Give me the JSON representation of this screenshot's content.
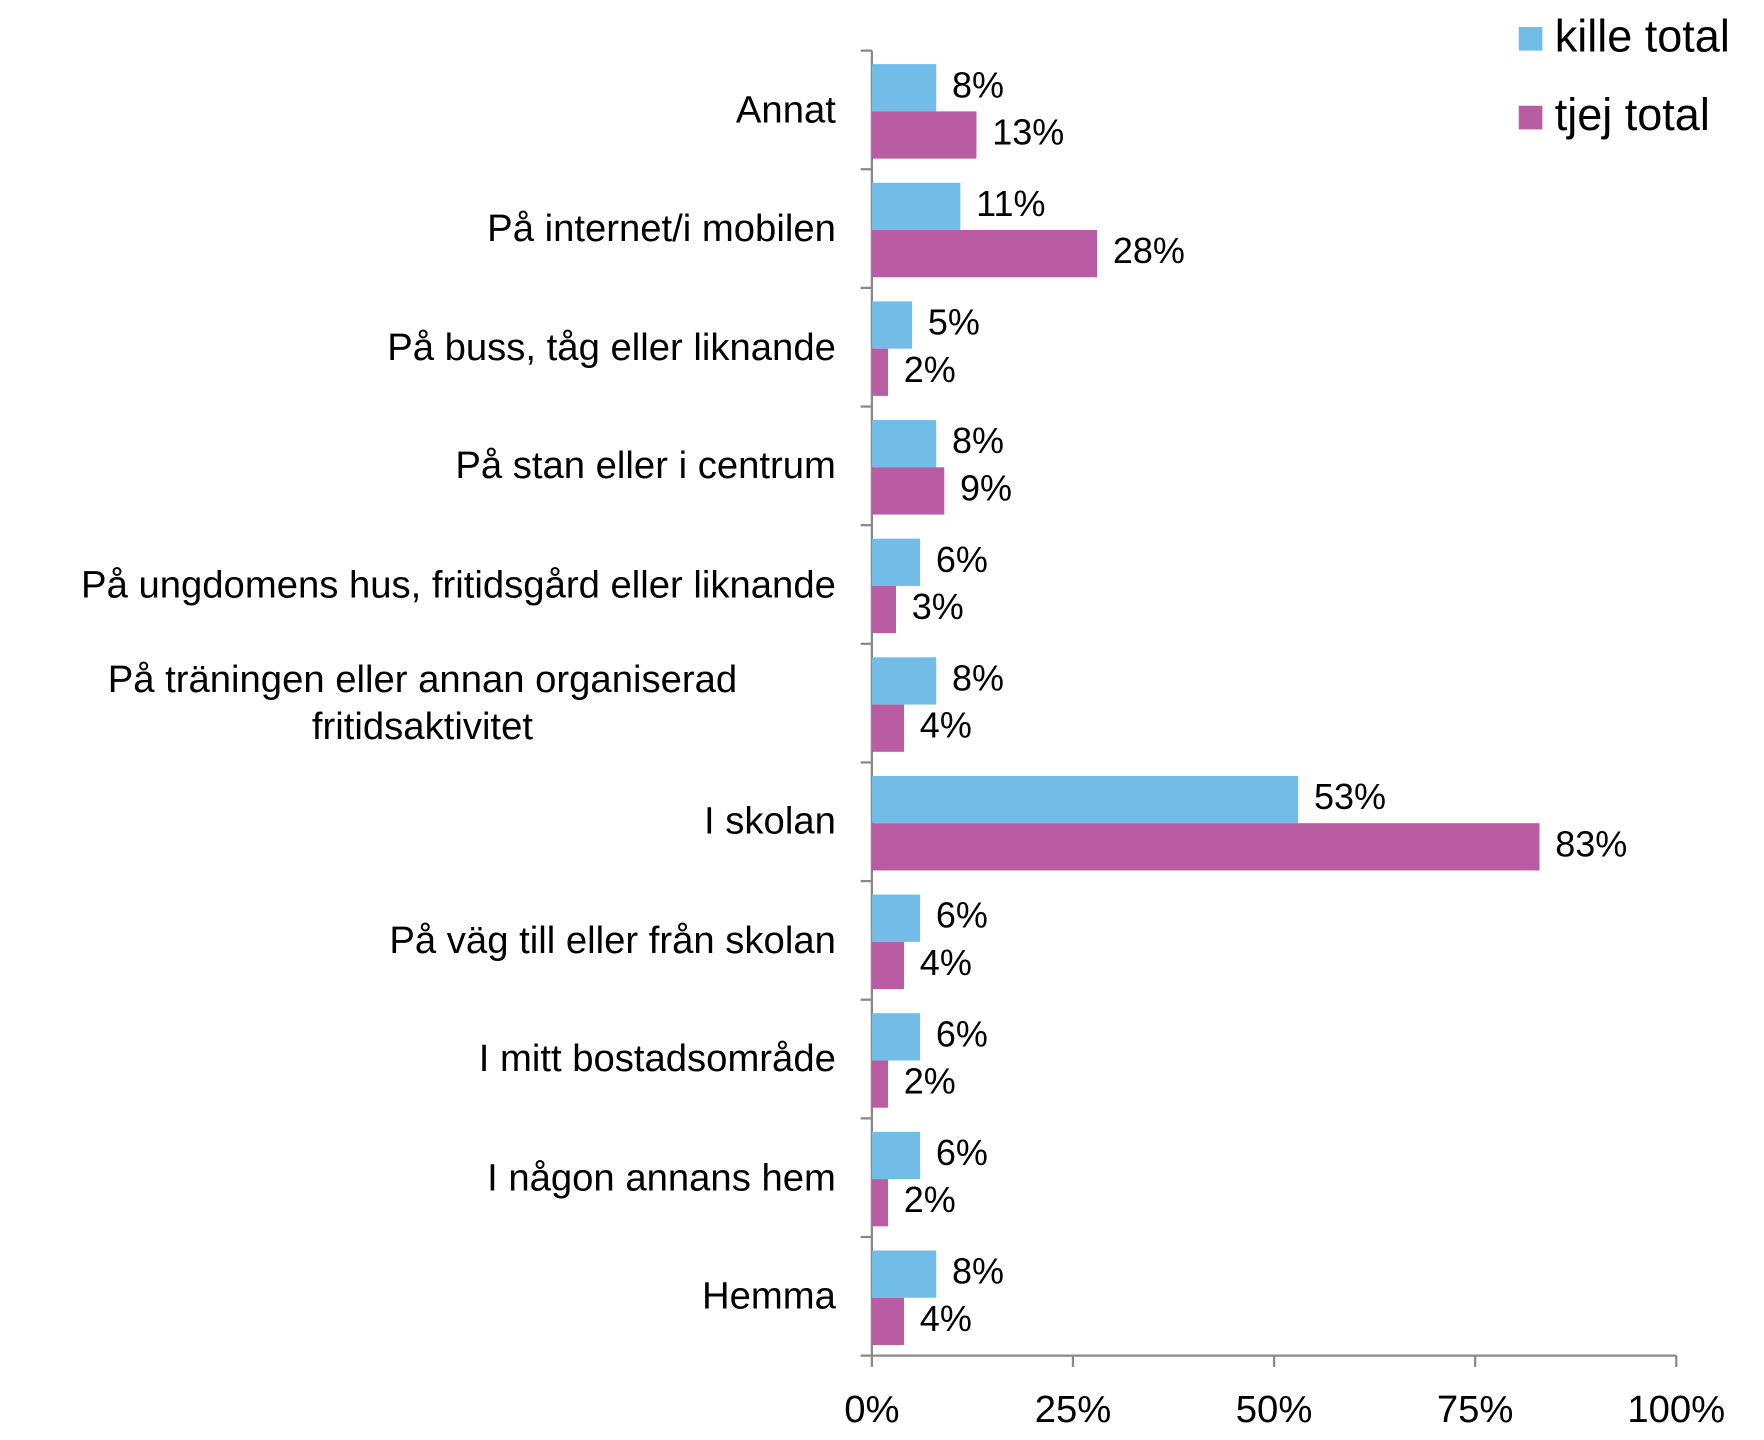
{
  "chart_data": {
    "type": "bar",
    "orientation": "horizontal",
    "categories": [
      "Annat",
      "På internet/i mobilen",
      "På buss, tåg eller liknande",
      "På stan eller i centrum",
      "På ungdomens hus, fritidsgård eller liknande",
      "På träningen eller annan organiserad fritidsaktivitet",
      "I skolan",
      "På väg till eller från skolan",
      "I mitt bostadsområde",
      "I någon annans hem",
      "Hemma"
    ],
    "series": [
      {
        "name": "kille total",
        "color": "#71bde8",
        "values": [
          8,
          11,
          5,
          8,
          6,
          8,
          53,
          6,
          6,
          6,
          8
        ],
        "value_labels": [
          "8%",
          "11%",
          "5%",
          "8%",
          "6%",
          "8%",
          "53%",
          "6%",
          "6%",
          "6%",
          "8%"
        ]
      },
      {
        "name": "tjej total",
        "color": "#b95ca3",
        "values": [
          13,
          28,
          2,
          9,
          3,
          4,
          83,
          4,
          2,
          2,
          4
        ],
        "value_labels": [
          "13%",
          "28%",
          "2%",
          "9%",
          "3%",
          "4%",
          "83%",
          "4%",
          "2%",
          "2%",
          "4%"
        ]
      }
    ],
    "xlim": [
      0,
      100
    ],
    "xticks": [
      {
        "value": 0,
        "label": "0%"
      },
      {
        "value": 25,
        "label": "25%"
      },
      {
        "value": 50,
        "label": "50%"
      },
      {
        "value": 75,
        "label": "75%"
      },
      {
        "value": 100,
        "label": "100%"
      }
    ],
    "legend": "top-right",
    "grid": false
  }
}
